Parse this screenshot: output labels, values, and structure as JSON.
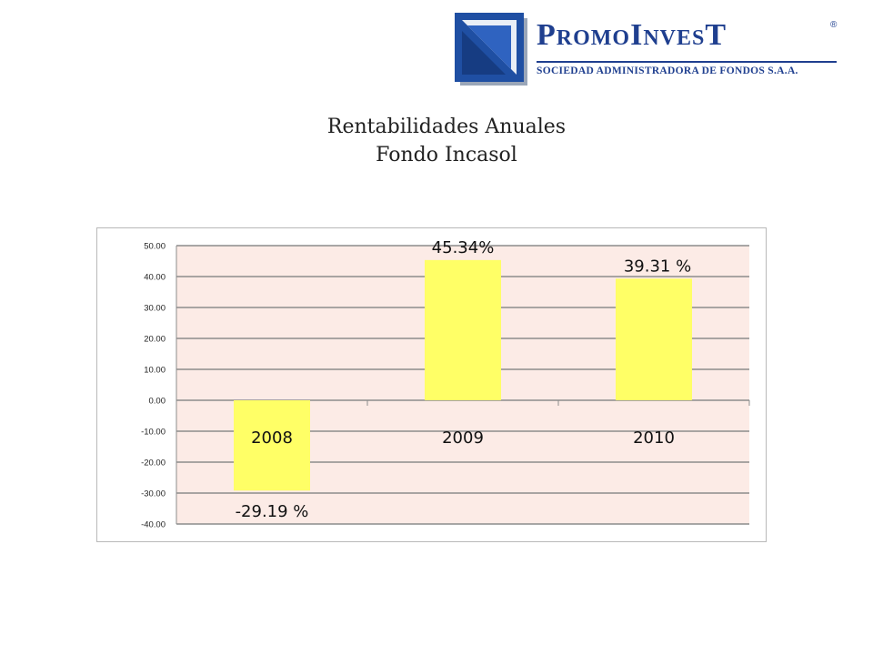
{
  "logo": {
    "name": "PromoInvesT",
    "tagline": "SOCIEDAD ADMINISTRADORA DE FONDOS S.A.A.",
    "registered_mark": "®",
    "brand_color": "#1f3f8f"
  },
  "chart_data": {
    "type": "bar",
    "title": "Rentabilidades Anuales",
    "subtitle": "Fondo Incasol",
    "categories": [
      "2008",
      "2009",
      "2010"
    ],
    "values": [
      -29.19,
      45.34,
      39.31
    ],
    "data_labels": [
      "-29.19 %",
      "45.34%",
      "39.31 %"
    ],
    "ylim": [
      -40,
      50
    ],
    "yticks": [
      "50.00",
      "40.00",
      "30.00",
      "20.00",
      "10.00",
      "0.00",
      "-10.00",
      "-20.00",
      "-30.00",
      "-40.00"
    ],
    "grid": true,
    "legend": "none",
    "colors": {
      "bar": "#ffff66",
      "plot_background": "#fcebe6",
      "gridline": "#8c8c8c"
    }
  }
}
